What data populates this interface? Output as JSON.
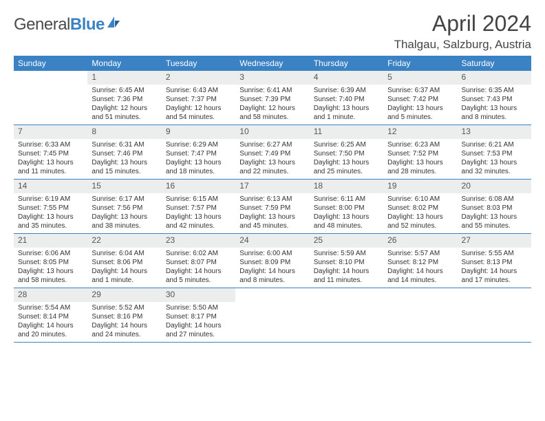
{
  "logo": {
    "part1": "General",
    "part2": "Blue"
  },
  "title": "April 2024",
  "location": "Thalgau, Salzburg, Austria",
  "colors": {
    "header_bg": "#3b82c4",
    "daynum_bg": "#eceded",
    "text": "#333333",
    "border": "#3b82c4",
    "background": "#ffffff"
  },
  "typography": {
    "title_fontsize": 32,
    "location_fontsize": 17,
    "dayheader_fontsize": 12,
    "daynum_fontsize": 12,
    "info_fontsize": 10
  },
  "day_names": [
    "Sunday",
    "Monday",
    "Tuesday",
    "Wednesday",
    "Thursday",
    "Friday",
    "Saturday"
  ],
  "weeks": [
    [
      null,
      {
        "n": "1",
        "sunrise": "Sunrise: 6:45 AM",
        "sunset": "Sunset: 7:36 PM",
        "day1": "Daylight: 12 hours",
        "day2": "and 51 minutes."
      },
      {
        "n": "2",
        "sunrise": "Sunrise: 6:43 AM",
        "sunset": "Sunset: 7:37 PM",
        "day1": "Daylight: 12 hours",
        "day2": "and 54 minutes."
      },
      {
        "n": "3",
        "sunrise": "Sunrise: 6:41 AM",
        "sunset": "Sunset: 7:39 PM",
        "day1": "Daylight: 12 hours",
        "day2": "and 58 minutes."
      },
      {
        "n": "4",
        "sunrise": "Sunrise: 6:39 AM",
        "sunset": "Sunset: 7:40 PM",
        "day1": "Daylight: 13 hours",
        "day2": "and 1 minute."
      },
      {
        "n": "5",
        "sunrise": "Sunrise: 6:37 AM",
        "sunset": "Sunset: 7:42 PM",
        "day1": "Daylight: 13 hours",
        "day2": "and 5 minutes."
      },
      {
        "n": "6",
        "sunrise": "Sunrise: 6:35 AM",
        "sunset": "Sunset: 7:43 PM",
        "day1": "Daylight: 13 hours",
        "day2": "and 8 minutes."
      }
    ],
    [
      {
        "n": "7",
        "sunrise": "Sunrise: 6:33 AM",
        "sunset": "Sunset: 7:45 PM",
        "day1": "Daylight: 13 hours",
        "day2": "and 11 minutes."
      },
      {
        "n": "8",
        "sunrise": "Sunrise: 6:31 AM",
        "sunset": "Sunset: 7:46 PM",
        "day1": "Daylight: 13 hours",
        "day2": "and 15 minutes."
      },
      {
        "n": "9",
        "sunrise": "Sunrise: 6:29 AM",
        "sunset": "Sunset: 7:47 PM",
        "day1": "Daylight: 13 hours",
        "day2": "and 18 minutes."
      },
      {
        "n": "10",
        "sunrise": "Sunrise: 6:27 AM",
        "sunset": "Sunset: 7:49 PM",
        "day1": "Daylight: 13 hours",
        "day2": "and 22 minutes."
      },
      {
        "n": "11",
        "sunrise": "Sunrise: 6:25 AM",
        "sunset": "Sunset: 7:50 PM",
        "day1": "Daylight: 13 hours",
        "day2": "and 25 minutes."
      },
      {
        "n": "12",
        "sunrise": "Sunrise: 6:23 AM",
        "sunset": "Sunset: 7:52 PM",
        "day1": "Daylight: 13 hours",
        "day2": "and 28 minutes."
      },
      {
        "n": "13",
        "sunrise": "Sunrise: 6:21 AM",
        "sunset": "Sunset: 7:53 PM",
        "day1": "Daylight: 13 hours",
        "day2": "and 32 minutes."
      }
    ],
    [
      {
        "n": "14",
        "sunrise": "Sunrise: 6:19 AM",
        "sunset": "Sunset: 7:55 PM",
        "day1": "Daylight: 13 hours",
        "day2": "and 35 minutes."
      },
      {
        "n": "15",
        "sunrise": "Sunrise: 6:17 AM",
        "sunset": "Sunset: 7:56 PM",
        "day1": "Daylight: 13 hours",
        "day2": "and 38 minutes."
      },
      {
        "n": "16",
        "sunrise": "Sunrise: 6:15 AM",
        "sunset": "Sunset: 7:57 PM",
        "day1": "Daylight: 13 hours",
        "day2": "and 42 minutes."
      },
      {
        "n": "17",
        "sunrise": "Sunrise: 6:13 AM",
        "sunset": "Sunset: 7:59 PM",
        "day1": "Daylight: 13 hours",
        "day2": "and 45 minutes."
      },
      {
        "n": "18",
        "sunrise": "Sunrise: 6:11 AM",
        "sunset": "Sunset: 8:00 PM",
        "day1": "Daylight: 13 hours",
        "day2": "and 48 minutes."
      },
      {
        "n": "19",
        "sunrise": "Sunrise: 6:10 AM",
        "sunset": "Sunset: 8:02 PM",
        "day1": "Daylight: 13 hours",
        "day2": "and 52 minutes."
      },
      {
        "n": "20",
        "sunrise": "Sunrise: 6:08 AM",
        "sunset": "Sunset: 8:03 PM",
        "day1": "Daylight: 13 hours",
        "day2": "and 55 minutes."
      }
    ],
    [
      {
        "n": "21",
        "sunrise": "Sunrise: 6:06 AM",
        "sunset": "Sunset: 8:05 PM",
        "day1": "Daylight: 13 hours",
        "day2": "and 58 minutes."
      },
      {
        "n": "22",
        "sunrise": "Sunrise: 6:04 AM",
        "sunset": "Sunset: 8:06 PM",
        "day1": "Daylight: 14 hours",
        "day2": "and 1 minute."
      },
      {
        "n": "23",
        "sunrise": "Sunrise: 6:02 AM",
        "sunset": "Sunset: 8:07 PM",
        "day1": "Daylight: 14 hours",
        "day2": "and 5 minutes."
      },
      {
        "n": "24",
        "sunrise": "Sunrise: 6:00 AM",
        "sunset": "Sunset: 8:09 PM",
        "day1": "Daylight: 14 hours",
        "day2": "and 8 minutes."
      },
      {
        "n": "25",
        "sunrise": "Sunrise: 5:59 AM",
        "sunset": "Sunset: 8:10 PM",
        "day1": "Daylight: 14 hours",
        "day2": "and 11 minutes."
      },
      {
        "n": "26",
        "sunrise": "Sunrise: 5:57 AM",
        "sunset": "Sunset: 8:12 PM",
        "day1": "Daylight: 14 hours",
        "day2": "and 14 minutes."
      },
      {
        "n": "27",
        "sunrise": "Sunrise: 5:55 AM",
        "sunset": "Sunset: 8:13 PM",
        "day1": "Daylight: 14 hours",
        "day2": "and 17 minutes."
      }
    ],
    [
      {
        "n": "28",
        "sunrise": "Sunrise: 5:54 AM",
        "sunset": "Sunset: 8:14 PM",
        "day1": "Daylight: 14 hours",
        "day2": "and 20 minutes."
      },
      {
        "n": "29",
        "sunrise": "Sunrise: 5:52 AM",
        "sunset": "Sunset: 8:16 PM",
        "day1": "Daylight: 14 hours",
        "day2": "and 24 minutes."
      },
      {
        "n": "30",
        "sunrise": "Sunrise: 5:50 AM",
        "sunset": "Sunset: 8:17 PM",
        "day1": "Daylight: 14 hours",
        "day2": "and 27 minutes."
      },
      null,
      null,
      null,
      null
    ]
  ]
}
